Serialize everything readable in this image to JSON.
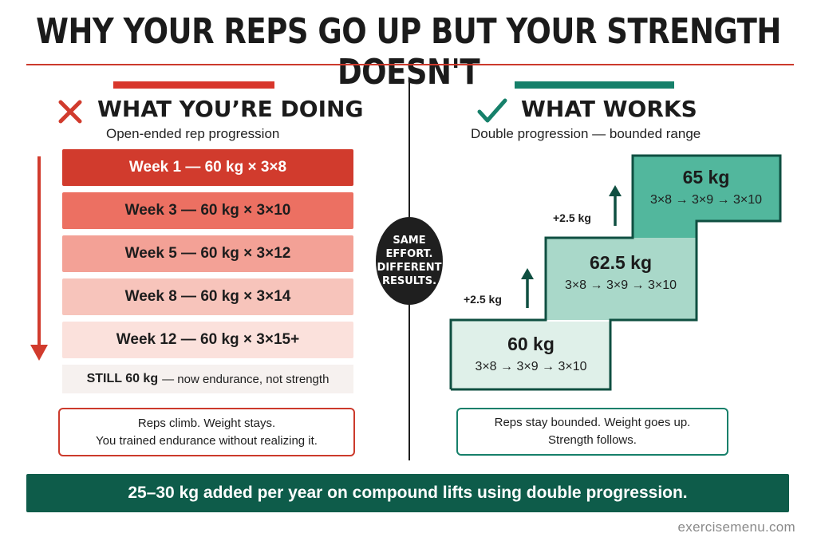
{
  "title": "WHY YOUR REPS GO UP BUT YOUR STRENGTH DOESN'T",
  "left": {
    "heading": "WHAT YOU’RE DOING",
    "subheading": "Open-ended rep progression",
    "icon": "x-icon",
    "weeks": [
      "Week 1 — 60 kg × 3×8",
      "Week 3 — 60 kg × 3×10",
      "Week 5 — 60 kg × 3×12",
      "Week 8 — 60 kg × 3×14",
      "Week 12 — 60 kg × 3×15+"
    ],
    "still_strong": "STILL 60 kg",
    "still_rest": "— now endurance, not strength",
    "note_line1": "Reps climb. Weight stays.",
    "note_line2": "You trained endurance without realizing it."
  },
  "center_badge": [
    "SAME",
    "EFFORT.",
    "DIFFERENT",
    "RESULTS."
  ],
  "right": {
    "heading": "WHAT WORKS",
    "subheading": "Double progression — bounded range",
    "icon": "check-icon",
    "steps": [
      {
        "weight": "60 kg",
        "reps": "3×8 → 3×9 → 3×10"
      },
      {
        "weight": "62.5 kg",
        "reps": "3×8 → 3×9 → 3×10"
      },
      {
        "weight": "65 kg",
        "reps": "3×8 → 3×9 → 3×10"
      }
    ],
    "increments": [
      "+2.5 kg",
      "+2.5 kg"
    ],
    "note_line1": "Reps stay bounded. Weight goes up.",
    "note_line2": "Strength follows."
  },
  "footer": "25–30 kg added per year on compound lifts using double progression.",
  "watermark": "exercisemenu.com",
  "colors": {
    "red": "#d13b2d",
    "green": "#16806a",
    "dark_green": "#0e5c4a",
    "badge": "#1f1f1f"
  }
}
